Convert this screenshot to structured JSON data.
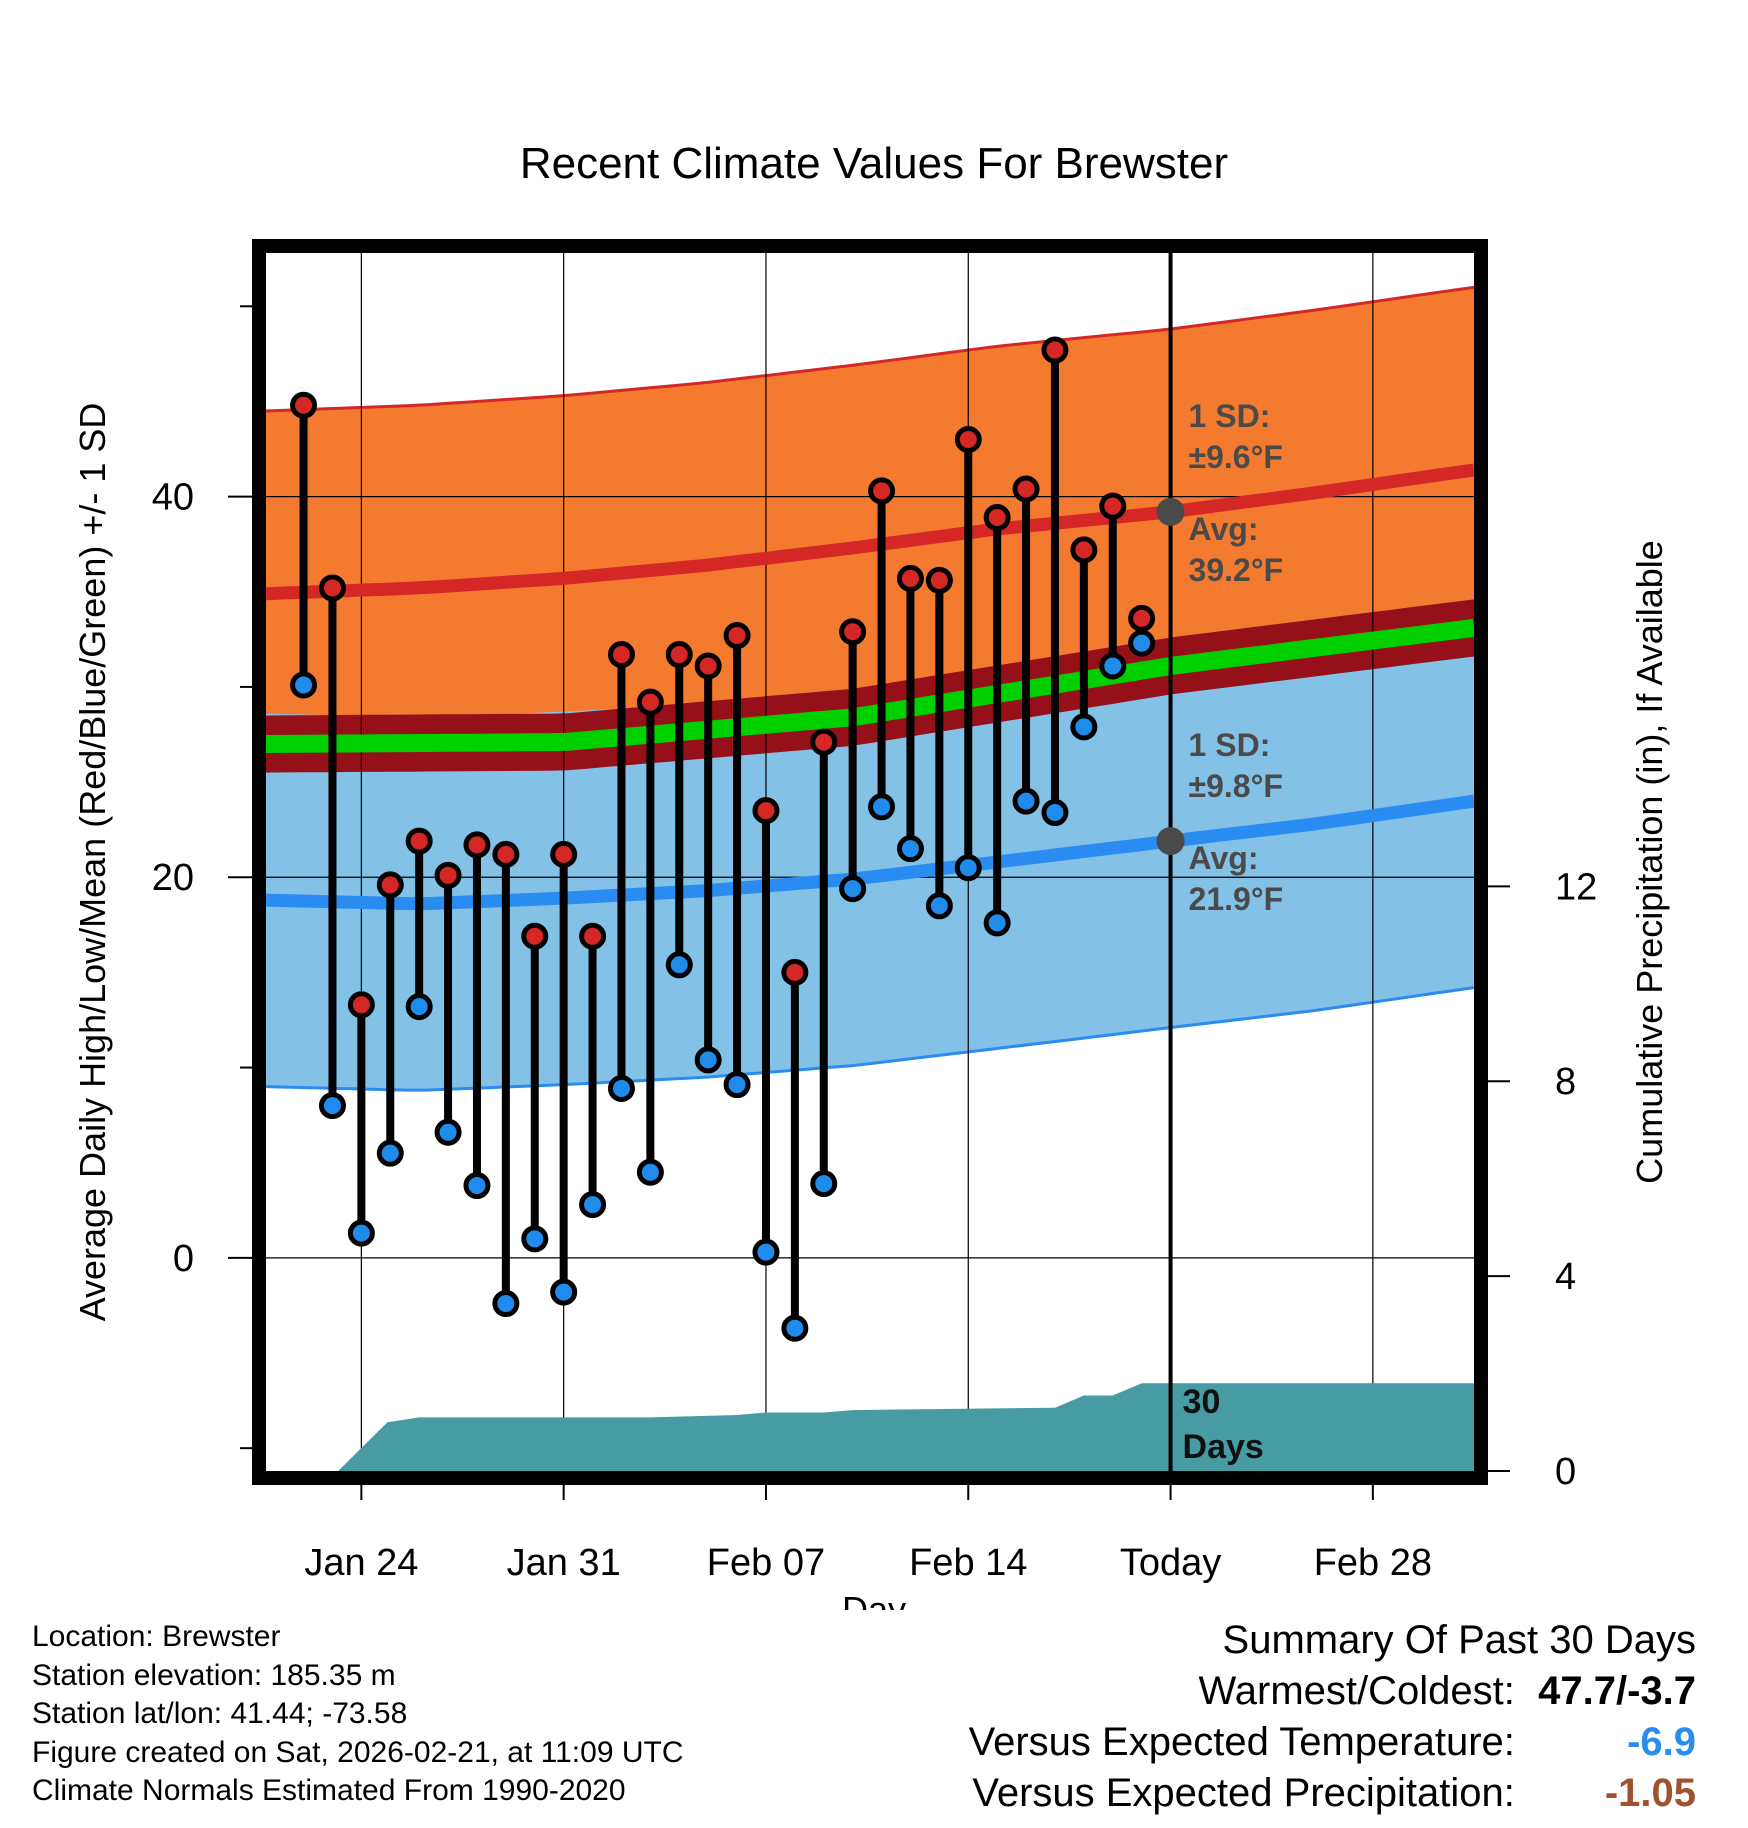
{
  "chart_data": {
    "type": "line",
    "title": "Recent Climate Values For Brewster",
    "xlabel": "Day",
    "ylabel_left": "Average Daily High/Low/Mean (Red/Blue/Green) +/- 1 SD",
    "ylabel_right": "Cumulative Precipitation (in), If Available",
    "x_ticks": [
      {
        "day": 3,
        "label": "Jan 24"
      },
      {
        "day": 10,
        "label": "Jan 31"
      },
      {
        "day": 17,
        "label": "Feb 07"
      },
      {
        "day": 24,
        "label": "Feb 14"
      },
      {
        "day": 31,
        "label": "Today"
      },
      {
        "day": 38,
        "label": "Feb 28"
      }
    ],
    "x_range": [
      -0.3,
      41.5
    ],
    "today_day": 31,
    "ylim_temp": [
      -11.2,
      52.8
    ],
    "y_ticks_temp": [
      0,
      20,
      40
    ],
    "y_minor_temp": [
      -10,
      10,
      30,
      50
    ],
    "ylim_precip": [
      0,
      25
    ],
    "y_ticks_precip": [
      0,
      4,
      8,
      12
    ],
    "days": [
      1,
      2,
      3,
      4,
      5,
      6,
      7,
      8,
      9,
      10,
      11,
      12,
      13,
      14,
      15,
      16,
      17,
      18,
      19,
      20,
      21,
      22,
      23,
      24,
      25,
      26,
      27,
      28,
      29,
      30
    ],
    "observed_high": [
      44.8,
      35.2,
      13.3,
      19.6,
      21.9,
      20.1,
      21.7,
      21.2,
      16.9,
      21.2,
      16.9,
      31.7,
      29.2,
      31.7,
      31.1,
      32.7,
      23.5,
      15.0,
      27.1,
      32.9,
      40.3,
      35.7,
      35.6,
      43.0,
      38.9,
      40.4,
      47.7,
      37.2,
      39.5,
      33.6
    ],
    "observed_low": [
      30.1,
      8.0,
      1.3,
      5.5,
      13.2,
      6.6,
      3.8,
      -2.4,
      1.0,
      -1.8,
      2.8,
      8.9,
      4.5,
      15.4,
      10.4,
      9.1,
      0.3,
      -3.7,
      3.9,
      19.4,
      23.7,
      21.5,
      18.5,
      20.5,
      17.6,
      24.0,
      23.4,
      27.9,
      31.1,
      32.3
    ],
    "normal_high_mean": [
      {
        "day": -0.3,
        "value": 34.9
      },
      {
        "day": 5,
        "value": 35.2
      },
      {
        "day": 10,
        "value": 35.7
      },
      {
        "day": 15,
        "value": 36.4
      },
      {
        "day": 20,
        "value": 37.3
      },
      {
        "day": 25,
        "value": 38.3
      },
      {
        "day": 31,
        "value": 39.2
      },
      {
        "day": 36,
        "value": 40.2
      },
      {
        "day": 41.5,
        "value": 41.4
      }
    ],
    "normal_high_sd": 9.6,
    "normal_low_mean": [
      {
        "day": -0.3,
        "value": 18.8
      },
      {
        "day": 5,
        "value": 18.6
      },
      {
        "day": 10,
        "value": 18.9
      },
      {
        "day": 15,
        "value": 19.3
      },
      {
        "day": 20,
        "value": 19.9
      },
      {
        "day": 25,
        "value": 20.8
      },
      {
        "day": 31,
        "value": 21.9
      },
      {
        "day": 36,
        "value": 22.8
      },
      {
        "day": 41.5,
        "value": 24.0
      }
    ],
    "normal_low_sd": 9.8,
    "normal_mean": [
      {
        "day": -0.3,
        "value": 27.0
      },
      {
        "day": 10,
        "value": 27.1
      },
      {
        "day": 20,
        "value": 28.4
      },
      {
        "day": 31,
        "value": 31.1
      },
      {
        "day": 41.5,
        "value": 33.1
      }
    ],
    "normal_mean_sd": 1.5,
    "cumulative_precip": [
      {
        "day": 2.2,
        "value": 0.0
      },
      {
        "day": 3.9,
        "value": 1.0
      },
      {
        "day": 5,
        "value": 1.1
      },
      {
        "day": 13,
        "value": 1.1
      },
      {
        "day": 16,
        "value": 1.15
      },
      {
        "day": 17,
        "value": 1.2
      },
      {
        "day": 19,
        "value": 1.2
      },
      {
        "day": 20,
        "value": 1.25
      },
      {
        "day": 27,
        "value": 1.3
      },
      {
        "day": 28,
        "value": 1.55
      },
      {
        "day": 29,
        "value": 1.55
      },
      {
        "day": 30,
        "value": 1.8
      },
      {
        "day": 41.5,
        "value": 1.8
      }
    ],
    "annotations": {
      "high_sd_label": "1 SD:",
      "high_sd_value": "±9.6°F",
      "high_avg_label": "Avg:",
      "high_avg_value": "39.2°F",
      "low_sd_label": "1 SD:",
      "low_sd_value": "±9.8°F",
      "low_avg_label": "Avg:",
      "low_avg_value": "21.9°F",
      "window_num": "30",
      "window_label": "Days"
    },
    "colors": {
      "high_band": "#f47a2f",
      "high_line": "#d42726",
      "low_band": "#84c1e7",
      "low_line": "#2a8cf0",
      "mean_band": "#96101a",
      "mean_line": "#00d000",
      "precip": "#479ba2",
      "high_dot": "#d42726",
      "low_dot": "#1f8ceb"
    }
  },
  "footer": {
    "location": "Location: Brewster",
    "elevation": "Station elevation: 185.35 m",
    "latlon": "Station lat/lon: 41.44; -73.58",
    "created": "Figure created on Sat, 2026-02-21, at 11:09 UTC",
    "normals": "Climate Normals Estimated From 1990-2020"
  },
  "summary": {
    "title": "Summary Of Past 30 Days",
    "warmest_label": "Warmest/Coldest:",
    "warmest_value": "47.7/-3.7",
    "temp_label": "Versus Expected Temperature:",
    "temp_value": "-6.9",
    "temp_color": "#2a8cf0",
    "precip_label": "Versus Expected Precipitation:",
    "precip_value": "-1.05",
    "precip_color": "#a0522d"
  }
}
